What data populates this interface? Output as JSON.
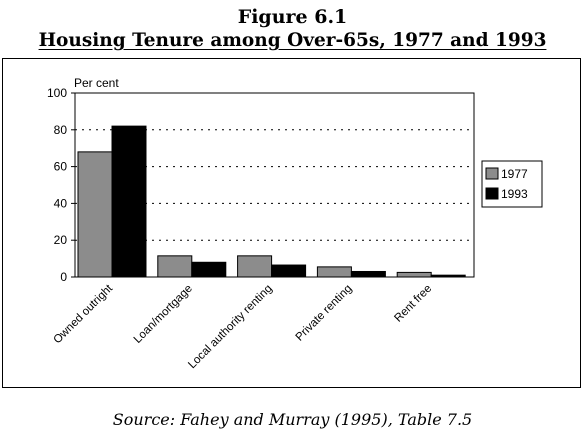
{
  "figure": {
    "number": "Figure 6.1",
    "title": "Housing Tenure among Over-65s, 1977 and 1993",
    "source": "Source: Fahey and Murray (1995), Table 7.5"
  },
  "chart_data": {
    "type": "bar",
    "title": "",
    "ylabel": "Per cent",
    "xlabel": "",
    "ylim": [
      0,
      100
    ],
    "yticks": [
      0,
      20,
      40,
      60,
      80,
      100
    ],
    "grid": "horizontal dotted",
    "legend_position": "right",
    "categories": [
      "Owned outright",
      "Loan/mortgage",
      "Local authority renting",
      "Private renting",
      "Rent free"
    ],
    "series": [
      {
        "name": "1977",
        "color": "#8c8c8c",
        "values": [
          68,
          11.5,
          11.5,
          5.5,
          2.5
        ]
      },
      {
        "name": "1993",
        "color": "#000000",
        "values": [
          82,
          8,
          6.5,
          3,
          1
        ]
      }
    ]
  }
}
